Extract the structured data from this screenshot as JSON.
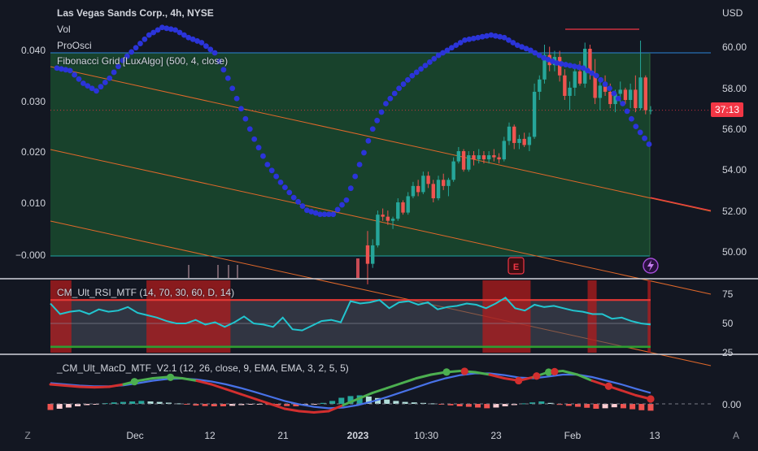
{
  "header": {
    "symbol_title": "Las Vegas Sands Corp., 4h, NYSE",
    "indicators": [
      "Vol",
      "ProOsci",
      "Fibonacci Grid [LuxAlgo] (500, 4, close)"
    ]
  },
  "price_axis": {
    "currency": "USD",
    "ticks": [
      "60.00",
      "58.00",
      "56.00",
      "54.00",
      "52.00",
      "50.00"
    ],
    "last_price_label": "37:13"
  },
  "left_axis": {
    "ticks": [
      "0.040",
      "0.030",
      "0.020",
      "0.010",
      "−0.000"
    ]
  },
  "rsi_pane": {
    "title": "CM_Ult_RSI_MTF (14, 70, 30, 60, D, 14)",
    "ticks": [
      "75",
      "50",
      "25"
    ]
  },
  "macd_pane": {
    "title": "_CM_Ult_MacD_MTF_V2.1 (12, 26, close, 9, EMA, EMA, 3, 2, 5, 5)",
    "ticks": [
      "0.00"
    ]
  },
  "time_axis": {
    "ticks": [
      "Dec",
      "12",
      "21",
      "2023",
      "10:30",
      "23",
      "Feb",
      "13"
    ]
  },
  "bottom_bar": {
    "left_icon_label": "Z",
    "right_icon_label": "A"
  },
  "earnings_marker": "E",
  "colors": {
    "background": "#131722",
    "up": "#26a69a",
    "down": "#ef5350",
    "osc": "#2b34d9",
    "zone": "#1b5e32",
    "rsi": "#22c5cf",
    "macd_fast": "#4872e8",
    "macd_slow": "#d32f2f",
    "cross_green": "#4caf50"
  },
  "chart_data": [
    {
      "type": "candlestick",
      "title": "Las Vegas Sands Corp., 4h, NYSE",
      "ylabel": "USD",
      "ylim": [
        49.0,
        61.5
      ],
      "x_ticks": [
        "Dec",
        "12",
        "21",
        "2023",
        "10:30",
        "23",
        "Feb",
        "13"
      ],
      "last_price": 56.9,
      "ohlc": [
        [
          50.3,
          51.0,
          48.4,
          49.4
        ],
        [
          49.4,
          50.6,
          49.2,
          50.3
        ],
        [
          50.3,
          52.0,
          50.2,
          51.8
        ],
        [
          51.8,
          52.1,
          51.5,
          51.7
        ],
        [
          51.7,
          52.0,
          51.3,
          51.5
        ],
        [
          51.5,
          51.7,
          51.1,
          51.6
        ],
        [
          51.6,
          52.6,
          51.5,
          52.4
        ],
        [
          52.4,
          52.5,
          51.8,
          51.9
        ],
        [
          51.9,
          52.9,
          51.8,
          52.7
        ],
        [
          52.7,
          53.4,
          52.6,
          53.2
        ],
        [
          53.2,
          53.5,
          52.7,
          52.9
        ],
        [
          52.9,
          53.9,
          52.8,
          53.7
        ],
        [
          53.7,
          53.9,
          53.1,
          53.3
        ],
        [
          53.3,
          53.5,
          52.4,
          52.6
        ],
        [
          52.6,
          53.7,
          52.5,
          53.5
        ],
        [
          53.5,
          53.8,
          53.0,
          53.2
        ],
        [
          53.2,
          53.6,
          52.7,
          53.5
        ],
        [
          53.5,
          54.6,
          53.4,
          54.4
        ],
        [
          54.4,
          55.1,
          54.3,
          54.9
        ],
        [
          54.9,
          55.0,
          53.9,
          54.0
        ],
        [
          54.0,
          54.9,
          53.9,
          54.7
        ],
        [
          54.7,
          54.9,
          54.2,
          54.5
        ],
        [
          54.5,
          55.0,
          54.3,
          54.7
        ],
        [
          54.7,
          54.9,
          54.3,
          54.5
        ],
        [
          54.5,
          54.9,
          54.3,
          54.7
        ],
        [
          54.7,
          55.0,
          54.4,
          54.6
        ],
        [
          54.6,
          54.8,
          54.3,
          54.5
        ],
        [
          54.5,
          55.6,
          54.4,
          55.4
        ],
        [
          55.4,
          56.3,
          55.2,
          56.1
        ],
        [
          56.1,
          56.2,
          55.0,
          55.3
        ],
        [
          55.3,
          55.7,
          55.0,
          55.5
        ],
        [
          55.5,
          55.8,
          55.1,
          55.2
        ],
        [
          55.2,
          55.8,
          54.9,
          55.6
        ],
        [
          55.6,
          58.2,
          55.5,
          57.8
        ],
        [
          57.8,
          58.6,
          57.4,
          58.4
        ],
        [
          58.4,
          60.1,
          58.2,
          59.6
        ],
        [
          59.6,
          60.0,
          58.8,
          59.1
        ],
        [
          59.1,
          59.8,
          58.8,
          59.5
        ],
        [
          59.5,
          59.8,
          58.3,
          58.6
        ],
        [
          58.6,
          58.9,
          57.4,
          57.6
        ],
        [
          57.6,
          58.3,
          56.9,
          58.0
        ],
        [
          58.0,
          59.0,
          57.6,
          58.8
        ],
        [
          58.8,
          59.3,
          58.1,
          58.2
        ],
        [
          58.2,
          60.2,
          58.0,
          59.9
        ],
        [
          59.9,
          60.1,
          58.4,
          58.7
        ],
        [
          58.7,
          59.4,
          57.2,
          57.5
        ],
        [
          57.5,
          58.4,
          56.9,
          58.1
        ],
        [
          58.1,
          58.6,
          57.6,
          57.8
        ],
        [
          57.8,
          58.2,
          57.0,
          57.2
        ],
        [
          57.2,
          57.9,
          56.8,
          57.7
        ],
        [
          57.7,
          58.3,
          57.3,
          57.9
        ],
        [
          57.9,
          58.0,
          57.2,
          57.4
        ],
        [
          57.4,
          58.2,
          57.0,
          57.9
        ],
        [
          57.9,
          58.6,
          56.8,
          57.0
        ],
        [
          57.0,
          60.3,
          56.9,
          58.5
        ],
        [
          58.5,
          58.6,
          56.7,
          56.9
        ],
        [
          56.9,
          57.1,
          56.7,
          56.9
        ]
      ]
    },
    {
      "type": "line",
      "name": "ProOsci",
      "ylim": [
        -0.006,
        0.049
      ],
      "y_ticks": [
        0.04,
        0.03,
        0.02,
        0.01,
        0.0
      ],
      "values": [
        0.037,
        0.0365,
        0.034,
        0.0325,
        0.035,
        0.0385,
        0.041,
        0.0435,
        0.045,
        0.0445,
        0.043,
        0.042,
        0.04,
        0.035,
        0.029,
        0.023,
        0.018,
        0.0145,
        0.0115,
        0.009,
        0.0082,
        0.0082,
        0.011,
        0.018,
        0.025,
        0.03,
        0.033,
        0.0355,
        0.0375,
        0.0395,
        0.041,
        0.0425,
        0.043,
        0.0435,
        0.043,
        0.0415,
        0.0405,
        0.039,
        0.038,
        0.0375,
        0.037,
        0.0355,
        0.033,
        0.03,
        0.0255,
        0.022
      ]
    },
    {
      "type": "line",
      "name": "CM_Ult_RSI_MTF",
      "ylim": [
        25,
        80
      ],
      "y_ticks": [
        75,
        50,
        25
      ],
      "overbought": 70,
      "oversold": 30,
      "values": [
        67,
        58,
        60,
        61,
        58,
        62,
        60,
        61,
        64,
        59,
        57,
        55,
        52,
        50,
        50,
        53,
        49,
        51,
        47,
        51,
        56,
        50,
        49,
        47,
        55,
        45,
        44,
        48,
        52,
        53,
        51,
        69,
        67,
        68,
        70,
        63,
        68,
        69,
        66,
        68,
        62,
        64,
        65,
        67,
        66,
        63,
        67,
        72,
        63,
        61,
        66,
        64,
        65,
        63,
        61,
        60,
        58,
        58,
        54,
        55,
        52,
        50,
        49
      ],
      "overbought_zones": [
        [
          0.0,
          0.035
        ],
        [
          0.16,
          0.3
        ],
        [
          0.72,
          0.8
        ],
        [
          0.895,
          0.91
        ],
        [
          0.995,
          1.0
        ]
      ]
    },
    {
      "type": "line",
      "name": "_CM_Ult_MacD_MTF_V2.1",
      "y_ticks": [
        0.0
      ],
      "macd": [
        0.8,
        0.75,
        0.7,
        0.68,
        0.7,
        0.8,
        0.95,
        1.05,
        1.1,
        1.05,
        0.95,
        0.8,
        0.6,
        0.4,
        0.2,
        0.0,
        -0.2,
        -0.3,
        -0.35,
        -0.3,
        -0.05,
        0.2,
        0.45,
        0.65,
        0.85,
        1.05,
        1.2,
        1.3,
        1.35,
        1.3,
        1.2,
        1.05,
        0.95,
        1.1,
        1.3,
        1.35,
        1.2,
        0.95,
        0.75,
        0.55,
        0.35,
        0.2
      ],
      "signal": [
        0.85,
        0.8,
        0.75,
        0.72,
        0.72,
        0.76,
        0.85,
        0.95,
        1.02,
        1.04,
        1.0,
        0.92,
        0.8,
        0.65,
        0.48,
        0.3,
        0.12,
        -0.02,
        -0.12,
        -0.18,
        -0.15,
        -0.05,
        0.1,
        0.28,
        0.48,
        0.68,
        0.88,
        1.05,
        1.18,
        1.25,
        1.25,
        1.18,
        1.08,
        1.05,
        1.12,
        1.2,
        1.2,
        1.1,
        0.95,
        0.8,
        0.62,
        0.45
      ],
      "histogram": [
        -0.25,
        -0.2,
        -0.15,
        -0.1,
        -0.05,
        -0.02,
        0.03,
        0.06,
        0.08,
        0.1,
        0.12,
        0.1,
        0.08,
        0.05,
        0.02,
        -0.03,
        -0.07,
        -0.09,
        -0.1,
        -0.1,
        -0.08,
        -0.05,
        -0.03,
        -0.02,
        -0.04,
        -0.06,
        -0.09,
        -0.1,
        -0.06,
        -0.02,
        0.04,
        0.12,
        0.25,
        0.32,
        0.35,
        0.3,
        0.24,
        0.18,
        0.12,
        0.08,
        0.06,
        0.04,
        0.02,
        -0.03,
        -0.06,
        -0.1,
        -0.12,
        -0.15,
        -0.18,
        -0.15,
        -0.1,
        -0.05,
        0.02,
        0.06,
        0.1,
        0.04,
        -0.04,
        -0.08,
        -0.12,
        -0.16,
        -0.2,
        -0.18,
        -0.14,
        -0.18,
        -0.22,
        -0.26,
        -0.28
      ],
      "crosses": [
        [
          0.14,
          "green"
        ],
        [
          0.2,
          "green"
        ],
        [
          0.66,
          "green"
        ],
        [
          0.69,
          "red"
        ],
        [
          0.78,
          "red"
        ],
        [
          0.81,
          "red"
        ],
        [
          0.83,
          "green"
        ],
        [
          0.84,
          "red"
        ],
        [
          0.93,
          "red"
        ],
        [
          1.0,
          "red"
        ]
      ]
    }
  ]
}
